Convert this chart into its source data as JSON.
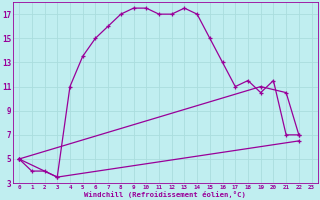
{
  "title": "",
  "xlabel": "Windchill (Refroidissement éolien,°C)",
  "bg_color": "#c0eef0",
  "line_color": "#990099",
  "grid_color": "#aadddd",
  "xlim": [
    -0.5,
    23.5
  ],
  "ylim": [
    3,
    18
  ],
  "yticks": [
    3,
    5,
    7,
    9,
    11,
    13,
    15,
    17
  ],
  "xticks": [
    0,
    1,
    2,
    3,
    4,
    5,
    6,
    7,
    8,
    9,
    10,
    11,
    12,
    13,
    14,
    15,
    16,
    17,
    18,
    19,
    20,
    21,
    22,
    23
  ],
  "line1_x": [
    0,
    1,
    2,
    3,
    4,
    5,
    6,
    7,
    8,
    9,
    10,
    11,
    12,
    13,
    14,
    15,
    16,
    17,
    18,
    19,
    20,
    21,
    22
  ],
  "line1_y": [
    5.0,
    4.0,
    4.0,
    3.5,
    11.0,
    13.5,
    15.0,
    16.0,
    17.0,
    17.5,
    17.5,
    17.0,
    17.0,
    17.5,
    17.0,
    15.0,
    13.0,
    11.0,
    11.5,
    10.5,
    11.5,
    7.0,
    7.0
  ],
  "line2_x": [
    0,
    19,
    21,
    22
  ],
  "line2_y": [
    5.0,
    11.0,
    10.5,
    7.0
  ],
  "line3_x": [
    0,
    3,
    22
  ],
  "line3_y": [
    5.0,
    3.5,
    6.5
  ]
}
